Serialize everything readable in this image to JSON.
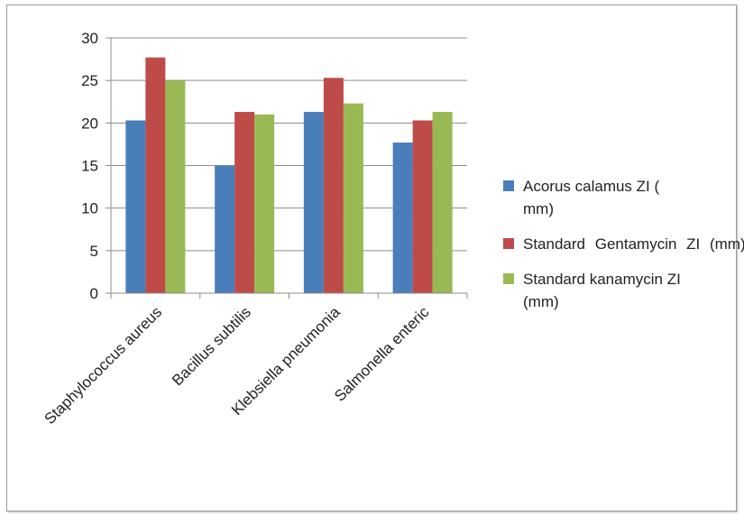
{
  "chart_data": {
    "type": "bar",
    "categories": [
      "Staphylococcus aureus",
      "Bacillus subtilis",
      "Klebsiella pneumonia",
      "Salmonella enteric"
    ],
    "series": [
      {
        "name": "Acorus calamus ZI (  mm)",
        "values": [
          20.3,
          15.0,
          21.3,
          17.7
        ],
        "color": "#4a7ebb"
      },
      {
        "name": "Standard   Gentamycin  ZI (mm)",
        "values": [
          27.7,
          21.3,
          25.3,
          20.3
        ],
        "color": "#be4b48"
      },
      {
        "name": "Standard kanamycin ZI (mm)",
        "values": [
          25.0,
          21.0,
          22.3,
          21.3
        ],
        "color": "#98b954"
      }
    ],
    "y_ticks": [
      0,
      5,
      10,
      15,
      20,
      25,
      30
    ],
    "ylim": [
      0,
      30
    ],
    "grid": "horizontal",
    "legend_position": "right"
  }
}
